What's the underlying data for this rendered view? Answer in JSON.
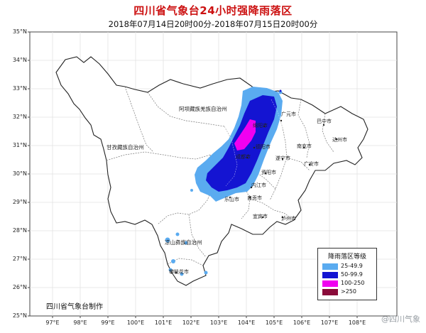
{
  "title": "四川省气象台24小时强降雨落区",
  "subtitle": "2018年07月14日20时00分-2018年07月15日20时00分",
  "lat_labels": [
    "35°N",
    "34°N",
    "33°N",
    "32°N",
    "31°N",
    "30°N",
    "29°N",
    "28°N",
    "27°N",
    "26°N",
    "25°N"
  ],
  "lon_labels": [
    "97°E",
    "98°E",
    "99°E",
    "100°E",
    "101°E",
    "102°E",
    "103°E",
    "104°E",
    "105°E",
    "106°E",
    "107°E",
    "108°E"
  ],
  "legend": {
    "title": "降雨落区等级",
    "items": [
      {
        "label": "25-49.9",
        "color": "#5aabf0"
      },
      {
        "label": "50-99.9",
        "color": "#1414d2"
      },
      {
        "label": "100-250",
        "color": "#f000f0"
      },
      {
        "label": ">250",
        "color": "#8a0b3a"
      }
    ]
  },
  "maker": "四川省气象台制作",
  "prefectures": {
    "aba": "阿坝藏族羌族自治州",
    "ganzi": "甘孜藏族自治州",
    "liangshan": "凉山彝族自治州"
  },
  "cities": {
    "guangyuan": "广元市",
    "bazhong": "巴中市",
    "mianyang": "绵阳市",
    "nanchong": "南充市",
    "dazhou": "达州市",
    "deyang": "德阳市",
    "suining": "遂宁市",
    "guangan": "广安市",
    "ziyang": "资阳市",
    "neijiang": "内江市",
    "leshan": "乐山市",
    "zigong": "自贡市",
    "yibin": "宜宾市",
    "luzhou": "泸州市",
    "panzhihua": "攀枝花市",
    "chengdu": "成都市"
  },
  "watermark": "@四川气象",
  "colors": {
    "title": "#cc1111",
    "grid": "#e4e4e4",
    "province_border": "#222222"
  }
}
